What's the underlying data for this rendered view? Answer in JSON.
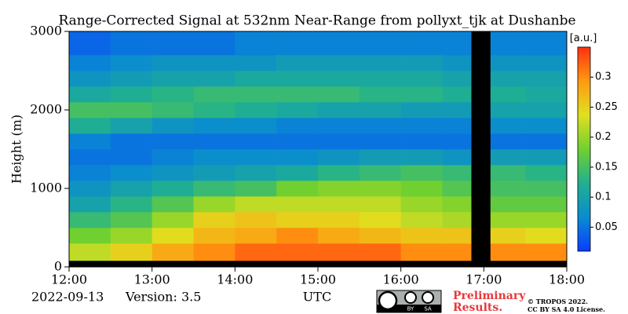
{
  "chart_data": {
    "type": "heatmap",
    "title": "Range-Corrected Signal at 532nm Near-Range from pollyxt_tjk at Dushanbe",
    "ylabel": "Height (m)",
    "xlabel": "UTC",
    "date": "2022-09-13",
    "version": "Version: 3.5",
    "preliminary": [
      "Preliminary",
      "Results."
    ],
    "copyright": [
      "© TROPOS 2022.",
      "CC BY SA 4.0 License."
    ],
    "license_badge": [
      "BY",
      "SA"
    ],
    "colorbar_label": "[a.u.]",
    "xlim": [
      12,
      18
    ],
    "xticks": [
      {
        "value": 12,
        "label": "12:00"
      },
      {
        "value": 13,
        "label": "13:00"
      },
      {
        "value": 14,
        "label": "14:00"
      },
      {
        "value": 15,
        "label": "15:00"
      },
      {
        "value": 16,
        "label": "16:00"
      },
      {
        "value": 17,
        "label": "17:00"
      },
      {
        "value": 18,
        "label": "18:00"
      }
    ],
    "ylim": [
      0,
      3000
    ],
    "yticks": [
      0,
      1000,
      2000,
      3000
    ],
    "clim": [
      0.01,
      0.35
    ],
    "cticks": [
      0.05,
      0.1,
      0.15,
      0.2,
      0.25,
      0.3
    ],
    "colormap": [
      "#0a3cff",
      "#0a8cd0",
      "#20b090",
      "#70d030",
      "#e0e020",
      "#ff9a10",
      "#ff3010"
    ],
    "missing_color": "#000000",
    "xbins": [
      12,
      12.5,
      13,
      13.5,
      14,
      14.5,
      15,
      15.5,
      16,
      16.5,
      16.85,
      17.08,
      17.5,
      18
    ],
    "ybins": [
      0,
      80,
      300,
      500,
      700,
      900,
      1100,
      1300,
      1500,
      1700,
      1900,
      2100,
      2300,
      2500,
      2700,
      3000
    ],
    "z": [
      [
        null,
        null,
        null,
        null,
        null,
        null,
        null,
        null,
        null,
        null,
        null,
        null,
        null
      ],
      [
        0.22,
        0.25,
        0.28,
        0.3,
        0.32,
        0.32,
        0.32,
        0.32,
        0.3,
        0.3,
        null,
        0.3,
        0.3
      ],
      [
        0.18,
        0.2,
        0.24,
        0.27,
        0.28,
        0.3,
        0.28,
        0.27,
        0.26,
        0.26,
        null,
        0.25,
        0.24
      ],
      [
        0.14,
        0.16,
        0.2,
        0.25,
        0.26,
        0.25,
        0.25,
        0.24,
        0.22,
        0.21,
        null,
        0.2,
        0.2
      ],
      [
        0.1,
        0.13,
        0.16,
        0.2,
        0.22,
        0.22,
        0.22,
        0.22,
        0.2,
        0.19,
        null,
        0.17,
        0.17
      ],
      [
        0.08,
        0.1,
        0.12,
        0.14,
        0.15,
        0.18,
        0.19,
        0.19,
        0.18,
        0.16,
        null,
        0.15,
        0.15
      ],
      [
        0.06,
        0.07,
        0.08,
        0.09,
        0.1,
        0.11,
        0.13,
        0.14,
        0.15,
        0.14,
        null,
        0.14,
        0.13
      ],
      [
        0.05,
        0.05,
        0.06,
        0.07,
        0.07,
        0.07,
        0.08,
        0.09,
        0.09,
        0.08,
        null,
        0.09,
        0.09
      ],
      [
        0.06,
        0.05,
        0.05,
        0.05,
        0.05,
        0.05,
        0.05,
        0.05,
        0.05,
        0.05,
        null,
        0.05,
        0.05
      ],
      [
        0.12,
        0.1,
        0.08,
        0.07,
        0.07,
        0.06,
        0.06,
        0.06,
        0.06,
        0.06,
        null,
        0.07,
        0.07
      ],
      [
        0.15,
        0.15,
        0.14,
        0.13,
        0.12,
        0.11,
        0.1,
        0.1,
        0.09,
        0.09,
        null,
        0.1,
        0.1
      ],
      [
        0.11,
        0.12,
        0.13,
        0.14,
        0.14,
        0.14,
        0.14,
        0.13,
        0.13,
        0.12,
        null,
        0.12,
        0.11
      ],
      [
        0.08,
        0.09,
        0.1,
        0.1,
        0.11,
        0.11,
        0.11,
        0.11,
        0.11,
        0.1,
        null,
        0.1,
        0.1
      ],
      [
        0.06,
        0.07,
        0.08,
        0.08,
        0.08,
        0.09,
        0.09,
        0.09,
        0.09,
        0.08,
        null,
        0.08,
        0.08
      ],
      [
        0.04,
        0.05,
        0.05,
        0.05,
        0.06,
        0.06,
        0.06,
        0.06,
        0.06,
        0.06,
        null,
        0.06,
        0.06
      ]
    ]
  }
}
